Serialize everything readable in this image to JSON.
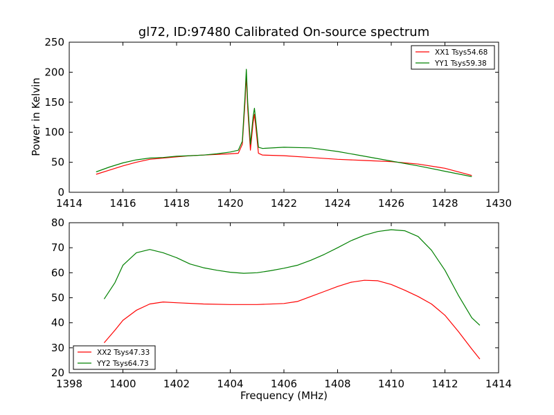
{
  "chart_data": [
    {
      "type": "line",
      "title": "gl72, ID:97480 Calibrated On-source spectrum",
      "xlabel": "",
      "ylabel": "Power in Kelvin",
      "xlim": [
        1414,
        1430
      ],
      "ylim": [
        0,
        250
      ],
      "xticks": [
        "1414",
        "1416",
        "1418",
        "1420",
        "1422",
        "1424",
        "1426",
        "1428",
        "1430"
      ],
      "yticks": [
        "0",
        "50",
        "100",
        "150",
        "200",
        "250"
      ],
      "legend_position": "top-right",
      "series": [
        {
          "name": "XX1 Tsys54.68",
          "color": "#ff0000",
          "x": [
            1415.0,
            1415.5,
            1416.0,
            1416.5,
            1417.0,
            1417.5,
            1418.0,
            1418.5,
            1419.0,
            1419.5,
            1420.0,
            1420.3,
            1420.45,
            1420.55,
            1420.6,
            1420.65,
            1420.75,
            1420.85,
            1420.9,
            1420.95,
            1421.05,
            1421.2,
            1422.0,
            1423.0,
            1424.0,
            1425.0,
            1426.0,
            1427.0,
            1428.0,
            1429.0
          ],
          "y": [
            30,
            37,
            44,
            50,
            55,
            57,
            59,
            61,
            62,
            63,
            64,
            65,
            80,
            150,
            195,
            140,
            70,
            115,
            130,
            110,
            65,
            62,
            61,
            58,
            55,
            53,
            51,
            47,
            40,
            28
          ]
        },
        {
          "name": "YY1 Tsys59.38",
          "color": "#008000",
          "x": [
            1415.0,
            1415.5,
            1416.0,
            1416.5,
            1417.0,
            1417.5,
            1418.0,
            1418.5,
            1419.0,
            1419.5,
            1420.0,
            1420.3,
            1420.45,
            1420.55,
            1420.6,
            1420.65,
            1420.75,
            1420.85,
            1420.9,
            1420.95,
            1421.05,
            1421.2,
            1422.0,
            1423.0,
            1424.0,
            1425.0,
            1426.0,
            1427.0,
            1428.0,
            1429.0
          ],
          "y": [
            34,
            42,
            49,
            54,
            57,
            58,
            60,
            61,
            62,
            64,
            67,
            70,
            85,
            160,
            205,
            150,
            80,
            125,
            140,
            120,
            75,
            73,
            75,
            74,
            68,
            60,
            52,
            44,
            35,
            26
          ]
        }
      ]
    },
    {
      "type": "line",
      "title": "",
      "xlabel": "Frequency (MHz)",
      "ylabel": "",
      "xlim": [
        1398,
        1414
      ],
      "ylim": [
        20,
        80
      ],
      "xticks": [
        "1398",
        "1400",
        "1402",
        "1404",
        "1406",
        "1408",
        "1410",
        "1412",
        "1414"
      ],
      "yticks": [
        "20",
        "30",
        "40",
        "50",
        "60",
        "70",
        "80"
      ],
      "legend_position": "bottom-left",
      "series": [
        {
          "name": "XX2 Tsys47.33",
          "color": "#ff0000",
          "x": [
            1399.3,
            1399.7,
            1400.0,
            1400.5,
            1401.0,
            1401.5,
            1402.0,
            1403.0,
            1404.0,
            1405.0,
            1406.0,
            1406.5,
            1407.0,
            1407.5,
            1408.0,
            1408.5,
            1409.0,
            1409.5,
            1410.0,
            1410.5,
            1411.0,
            1411.5,
            1412.0,
            1412.5,
            1413.0,
            1413.3
          ],
          "y": [
            32,
            37,
            41,
            45,
            47.5,
            48.3,
            48,
            47.5,
            47.3,
            47.3,
            47.7,
            48.5,
            50.5,
            52.5,
            54.5,
            56.2,
            57,
            56.8,
            55.3,
            53,
            50.5,
            47.5,
            43,
            36.5,
            29.5,
            25.5
          ]
        },
        {
          "name": "YY2 Tsys64.73",
          "color": "#008000",
          "x": [
            1399.3,
            1399.7,
            1400.0,
            1400.5,
            1401.0,
            1401.5,
            1402.0,
            1402.5,
            1403.0,
            1403.5,
            1404.0,
            1404.5,
            1405.0,
            1405.5,
            1406.0,
            1406.5,
            1407.0,
            1407.5,
            1408.0,
            1408.5,
            1409.0,
            1409.5,
            1410.0,
            1410.5,
            1411.0,
            1411.5,
            1412.0,
            1412.5,
            1413.0,
            1413.3
          ],
          "y": [
            49.5,
            56,
            63,
            68,
            69.3,
            68,
            66,
            63.5,
            62,
            61,
            60.2,
            59.8,
            60,
            60.8,
            61.8,
            63,
            65,
            67.3,
            70,
            72.8,
            75,
            76.5,
            77.2,
            76.8,
            74.5,
            69,
            61,
            51,
            42,
            39
          ]
        }
      ]
    }
  ]
}
